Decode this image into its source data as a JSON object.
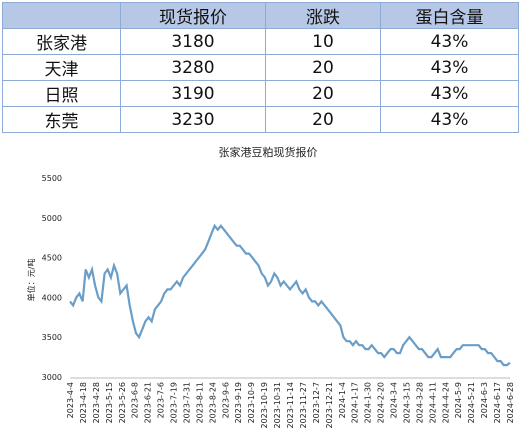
{
  "table": {
    "headers": [
      "",
      "现货报价",
      "涨跌",
      "蛋白含量"
    ],
    "rows": [
      {
        "region": "张家港",
        "price": "3180",
        "change": "10",
        "protein": "43%"
      },
      {
        "region": "天津",
        "price": "3280",
        "change": "20",
        "protein": "43%"
      },
      {
        "region": "日照",
        "price": "3190",
        "change": "20",
        "protein": "43%"
      },
      {
        "region": "东莞",
        "price": "3230",
        "change": "20",
        "protein": "43%"
      }
    ]
  },
  "chart_data": {
    "type": "line",
    "title": "张家港豆粕现货报价",
    "ylabel": "单位：元/吨",
    "xlabel": "",
    "ylim": [
      3000,
      5500
    ],
    "yticks": [
      3000,
      3500,
      4000,
      4500,
      5000,
      5500
    ],
    "grid": false,
    "legend": "none",
    "line_color": "#6a9ec9",
    "x_tick_labels": [
      "2023-4-4",
      "2023-4-18",
      "2023-4-28",
      "2023-5-15",
      "2023-5-26",
      "2023-6-8",
      "2023-6-21",
      "2023-7-6",
      "2023-7-19",
      "2023-7-31",
      "2023-8-11",
      "2023-8-24",
      "2023-9-6",
      "2023-9-19",
      "2023-10-9",
      "2023-10-19",
      "2023-10-31",
      "2023-11-14",
      "2023-11-27",
      "2023-12-7",
      "2023-12-21",
      "2024-1-4",
      "2024-1-17",
      "2024-1-30",
      "2024-2-20",
      "2024-3-4",
      "2024-3-15",
      "2024-3-28",
      "2024-4-11",
      "2024-4-24",
      "2024-5-9",
      "2024-5-21",
      "2024-6-3",
      "2024-6-17",
      "2024-6-28"
    ],
    "series": [
      {
        "values": [
          3950,
          3900,
          4000,
          4050,
          3950,
          4350,
          4250,
          4350,
          4150,
          4000,
          3950,
          4300,
          4350,
          4250,
          4400,
          4300,
          4050,
          4100,
          4150,
          3900,
          3700,
          3550,
          3500,
          3600,
          3700,
          3750,
          3700,
          3850,
          3900,
          3950,
          4050,
          4100,
          4100,
          4150,
          4200,
          4150,
          4250,
          4300,
          4350,
          4400,
          4450,
          4500,
          4550,
          4600,
          4700,
          4800,
          4900,
          4850,
          4900,
          4850,
          4800,
          4750,
          4700,
          4650,
          4650,
          4600,
          4550,
          4550,
          4500,
          4450,
          4400,
          4300,
          4250,
          4150,
          4200,
          4300,
          4250,
          4150,
          4200,
          4150,
          4100,
          4150,
          4200,
          4100,
          4050,
          4100,
          4000,
          3950,
          3950,
          3900,
          3950,
          3900,
          3850,
          3800,
          3750,
          3700,
          3650,
          3500,
          3450,
          3450,
          3400,
          3450,
          3400,
          3400,
          3350,
          3350,
          3400,
          3350,
          3300,
          3300,
          3250,
          3300,
          3350,
          3350,
          3300,
          3300,
          3400,
          3450,
          3500,
          3450,
          3400,
          3350,
          3350,
          3300,
          3250,
          3250,
          3300,
          3350,
          3250,
          3250,
          3250,
          3250,
          3300,
          3350,
          3350,
          3400,
          3400,
          3400,
          3400,
          3400,
          3400,
          3350,
          3350,
          3300,
          3300,
          3250,
          3200,
          3200,
          3150,
          3150,
          3180
        ]
      }
    ]
  }
}
